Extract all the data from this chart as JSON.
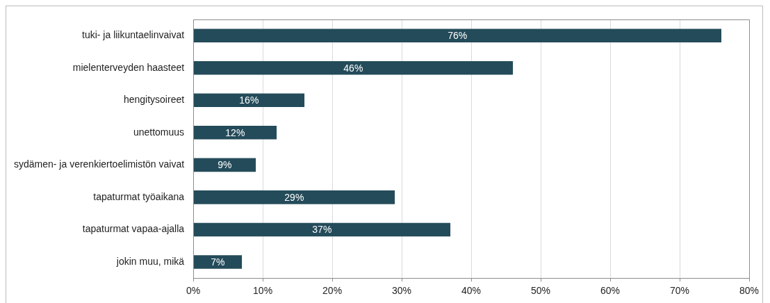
{
  "chart_data": {
    "type": "bar",
    "orientation": "horizontal",
    "categories": [
      "tuki- ja liikuntaelinvaivat",
      "mielenterveyden haasteet",
      "hengitysoireet",
      "unettomuus",
      "sydämen- ja verenkiertoelimistön vaivat",
      "tapaturmat työaikana",
      "tapaturmat vapaa-ajalla",
      "jokin muu, mikä"
    ],
    "values": [
      76,
      46,
      16,
      12,
      9,
      29,
      37,
      7
    ],
    "value_labels": [
      "76%",
      "46%",
      "16%",
      "12%",
      "9%",
      "29%",
      "37%",
      "7%"
    ],
    "color": "#244b5a",
    "xlim": [
      0,
      80
    ],
    "xticks": [
      {
        "value": 0,
        "label": "0%"
      },
      {
        "value": 10,
        "label": "10%"
      },
      {
        "value": 20,
        "label": "20%"
      },
      {
        "value": 30,
        "label": "30%"
      },
      {
        "value": 40,
        "label": "40%"
      },
      {
        "value": 50,
        "label": "50%"
      },
      {
        "value": 60,
        "label": "60%"
      },
      {
        "value": 70,
        "label": "70%"
      },
      {
        "value": 80,
        "label": "80%"
      }
    ],
    "grid": "x"
  }
}
